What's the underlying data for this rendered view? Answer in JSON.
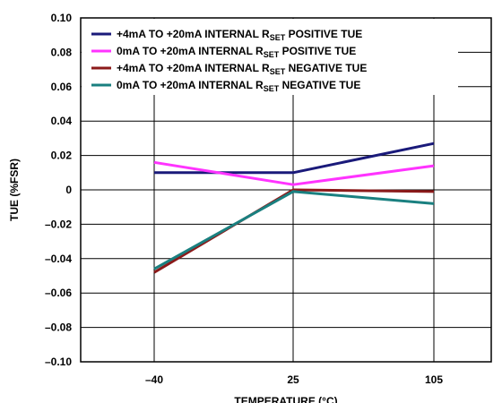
{
  "chart_data": {
    "type": "line",
    "xlabel": "TEMPERATURE (°C)",
    "ylabel": "TUE (%FSR)",
    "categories": [
      "–40",
      "25",
      "105"
    ],
    "x": [
      -40,
      25,
      105
    ],
    "ylim": [
      -0.1,
      0.1
    ],
    "yticks": [
      {
        "value": 0.1,
        "label": "0.10"
      },
      {
        "value": 0.08,
        "label": "0.08"
      },
      {
        "value": 0.06,
        "label": "0.06"
      },
      {
        "value": 0.04,
        "label": "0.04"
      },
      {
        "value": 0.02,
        "label": "0.02"
      },
      {
        "value": 0.0,
        "label": "0"
      },
      {
        "value": -0.02,
        "label": "–0.02"
      },
      {
        "value": -0.04,
        "label": "–0.04"
      },
      {
        "value": -0.06,
        "label": "–0.06"
      },
      {
        "value": -0.08,
        "label": "–0.08"
      },
      {
        "value": -0.1,
        "label": "–0.10"
      }
    ],
    "grid": true,
    "legend_position": "top-left",
    "series": [
      {
        "name": {
          "pre": "+4mA TO +20mA INTERNAL R",
          "sub": "SET",
          "post": " POSITIVE TUE"
        },
        "color": "#1a1a7a",
        "values": [
          0.01,
          0.01,
          0.027
        ]
      },
      {
        "name": {
          "pre": "0mA TO +20mA INTERNAL R",
          "sub": "SET",
          "post": " POSITIVE TUE"
        },
        "color": "#ff33ff",
        "values": [
          0.016,
          0.003,
          0.014
        ]
      },
      {
        "name": {
          "pre": "+4mA TO +20mA INTERNAL R",
          "sub": "SET",
          "post": " NEGATIVE TUE"
        },
        "color": "#8b1a1a",
        "values": [
          -0.048,
          0.0,
          -0.001
        ]
      },
      {
        "name": {
          "pre": "0mA TO +20mA INTERNAL R",
          "sub": "SET",
          "post": " NEGATIVE TUE"
        },
        "color": "#1a8080",
        "values": [
          -0.046,
          -0.001,
          -0.008
        ]
      }
    ]
  }
}
